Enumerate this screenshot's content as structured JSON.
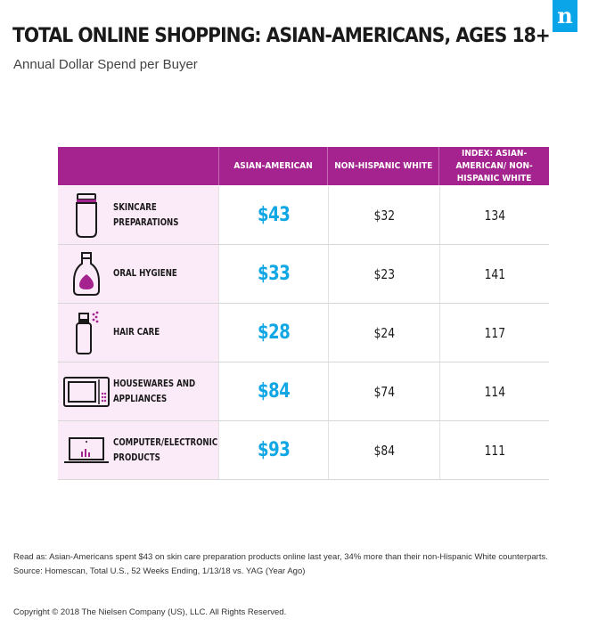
{
  "brand": {
    "logo_letter": "n",
    "color": "#0aa5e8"
  },
  "title": "TOTAL ONLINE SHOPPING: ASIAN-AMERICANS, AGES 18+",
  "subtitle": "Annual Dollar Spend per Buyer",
  "colors": {
    "header": "#a4238f",
    "label_bg": "#fbeaf7",
    "accent": "#10a7e4",
    "icon": "#a4238f"
  },
  "chart_data": {
    "type": "table",
    "columns": [
      "ASIAN-AMERICAN",
      "NON-HISPANIC WHITE",
      "INDEX: ASIAN-AMERICAN/ NON-HISPANIC WHITE"
    ],
    "rows": [
      {
        "category": "SKINCARE\nPREPARATIONS",
        "icon": "lotion-tube-icon",
        "asian_american": "$43",
        "non_hispanic_white": "$32",
        "index": "134"
      },
      {
        "category": "ORAL HYGIENE",
        "icon": "mouthwash-bottle-icon",
        "asian_american": "$33",
        "non_hispanic_white": "$23",
        "index": "141"
      },
      {
        "category": "HAIR CARE",
        "icon": "spray-bottle-icon",
        "asian_american": "$28",
        "non_hispanic_white": "$24",
        "index": "117"
      },
      {
        "category": "HOUSEWARES AND\nAPPLIANCES",
        "icon": "microwave-icon",
        "asian_american": "$84",
        "non_hispanic_white": "$74",
        "index": "114"
      },
      {
        "category": "COMPUTER/ELECTRONIC\nPRODUCTS",
        "icon": "laptop-icon",
        "asian_american": "$93",
        "non_hispanic_white": "$84",
        "index": "111"
      }
    ]
  },
  "footer": {
    "read_as": "Read as: Asian-Americans spent $43 on skin care preparation products online last year, 34% more than their non-Hispanic White counterparts.",
    "source": "Source: Homescan, Total U.S., 52 Weeks Ending, 1/13/18 vs. YAG (Year Ago)",
    "copyright": "Copyright © 2018 The Nielsen Company (US), LLC. All Rights Reserved."
  }
}
